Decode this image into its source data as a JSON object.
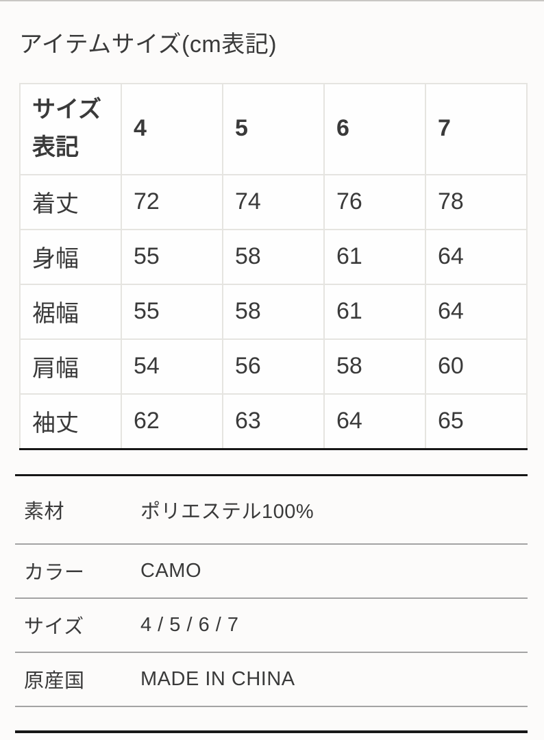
{
  "page": {
    "title": "アイテムサイズ(cm表記)"
  },
  "size_table": {
    "header": {
      "label": "サイズ表記",
      "sizes": [
        "4",
        "5",
        "6",
        "7"
      ]
    },
    "rows": [
      {
        "label": "着丈",
        "values": [
          "72",
          "74",
          "76",
          "78"
        ]
      },
      {
        "label": "身幅",
        "values": [
          "55",
          "58",
          "61",
          "64"
        ]
      },
      {
        "label": "裾幅",
        "values": [
          "55",
          "58",
          "61",
          "64"
        ]
      },
      {
        "label": "肩幅",
        "values": [
          "54",
          "56",
          "58",
          "60"
        ]
      },
      {
        "label": "袖丈",
        "values": [
          "62",
          "63",
          "64",
          "65"
        ]
      }
    ]
  },
  "details": {
    "rows": [
      {
        "label": "素材",
        "value": "ポリエステル100%"
      },
      {
        "label": "カラー",
        "value": "CAMO"
      },
      {
        "label": "サイズ",
        "value": "4 / 5 / 6 / 7"
      },
      {
        "label": "原産国",
        "value": "MADE IN CHINA"
      }
    ]
  },
  "colors": {
    "background": "#fcfbfa",
    "cell_background": "#fefefe",
    "text": "#3a3a3a",
    "table_border": "#e5e4e0",
    "thin_separator": "#a3a3a3",
    "heavy_rule": "#161616"
  }
}
